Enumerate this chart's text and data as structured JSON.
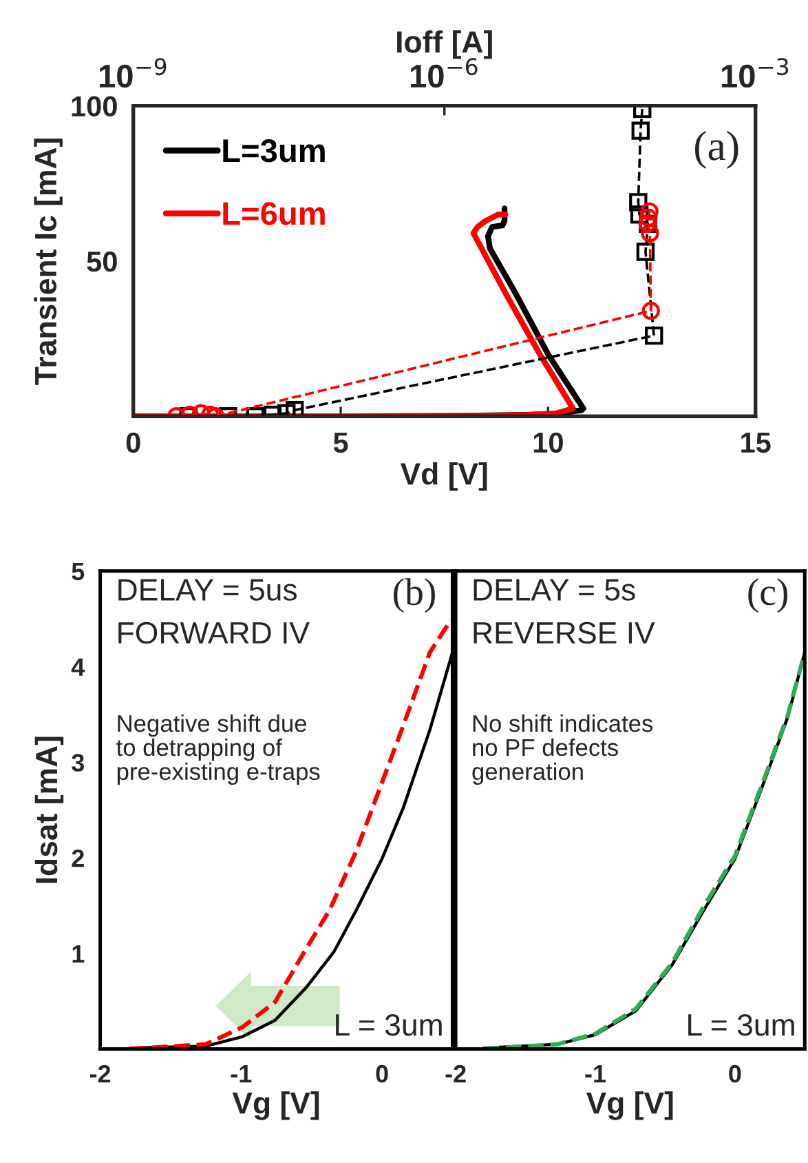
{
  "chart_data": [
    {
      "type": "line",
      "xlabel": "Vd [V]",
      "x2label": "Ioff [A]",
      "ylabel": "Transient Ic [mA]",
      "xlim": [
        0,
        15
      ],
      "xticks": [
        0,
        5,
        10,
        15
      ],
      "ylim": [
        0,
        100
      ],
      "yticks": [
        50,
        100
      ],
      "x2lim": [
        1e-09,
        0.001
      ],
      "x2ticks": [
        {
          "value": 1e-09,
          "label": "10$^{−9}$"
        },
        {
          "value": 1e-06,
          "label": "10$^{−6}$"
        },
        {
          "value": 0.001,
          "label": "10$^{−3}$"
        }
      ],
      "log": "x2",
      "legend": "top left",
      "grid": false,
      "annotations": [
        "(a)"
      ],
      "series": [
        {
          "name": "L=3um",
          "color": "#000000",
          "line_style": "solid",
          "marker": "none",
          "x": [
            0,
            5,
            8,
            9.5,
            10.3,
            10.8,
            10.85,
            10.0,
            9.2,
            8.6,
            8.55,
            8.65,
            8.9,
            8.95,
            8.95
          ],
          "values": [
            0,
            0,
            0.2,
            0.5,
            1,
            2,
            2.5,
            20,
            40,
            54,
            58,
            61,
            61.5,
            63,
            67
          ]
        },
        {
          "name": "L=6um",
          "color": "#ff0000",
          "line_style": "solid",
          "marker": "none",
          "x": [
            0,
            5,
            8,
            9.5,
            10.2,
            10.6,
            9.8,
            9.0,
            8.2,
            8.3,
            8.5,
            8.8,
            8.97
          ],
          "values": [
            0,
            0,
            0.1,
            0.4,
            1,
            2.5,
            20,
            39,
            59,
            61,
            63,
            65,
            65
          ]
        },
        {
          "color": "#000000",
          "axis": "x2",
          "line_style": "dashed",
          "marker": "square",
          "x": [
            3.4e-09,
            8.2e-09,
            1.5e-08,
            2.2e-08,
            3e-08,
            3.6e-08,
            0.000105,
            8.7e-05,
            9.2e-05,
            7.6e-05,
            7.4e-05,
            7.8e-05,
            8.1e-05
          ],
          "values": [
            0,
            0,
            0,
            0.5,
            1,
            2,
            26,
            53,
            62,
            65,
            69,
            92,
            99
          ]
        },
        {
          "color": "#ff0000",
          "axis": "x2",
          "line_style": "dashed",
          "marker": "circle",
          "x": [
            2.6e-09,
            3.5e-09,
            4.5e-09,
            5.5e-09,
            6.2e-09,
            9.8e-05,
            9.6e-05,
            9.1e-05,
            9.3e-05,
            9.5e-05
          ],
          "values": [
            0,
            0.5,
            1,
            0.5,
            0,
            34,
            59,
            62,
            64,
            66
          ]
        }
      ]
    },
    {
      "type": "line",
      "xlabel": "Vg [V]",
      "ylabel": "Idsat [mA]",
      "xlim": [
        -2,
        0.5
      ],
      "xticks": [
        -2,
        -1,
        0
      ],
      "ylim": [
        0,
        5
      ],
      "yticks": [
        1,
        2,
        3,
        4,
        5
      ],
      "grid": false,
      "annotations": [
        "DELAY = 5us",
        "FORWARD IV",
        "(b)",
        "Negative shift due\nto detrapping of\npre-existing e-traps",
        "L = 3um"
      ],
      "series": [
        {
          "color": "#000000",
          "line_style": "solid",
          "marker": "none",
          "x": [
            -1.79,
            -1.25,
            -0.99,
            -0.76,
            -0.54,
            -0.34,
            -0.18,
            0,
            0.15,
            0.34,
            0.5
          ],
          "values": [
            0.01,
            0.03,
            0.13,
            0.3,
            0.64,
            1.02,
            1.46,
            1.99,
            2.52,
            3.34,
            4.15
          ]
        },
        {
          "color": "#ff0000",
          "line_style": "dashed",
          "marker": "none",
          "x": [
            -1.79,
            -1.25,
            -0.99,
            -0.76,
            -0.57,
            -0.37,
            -0.18,
            -0.02,
            0.15,
            0.34,
            0.49
          ],
          "values": [
            0,
            0.05,
            0.23,
            0.49,
            0.97,
            1.46,
            2.08,
            2.71,
            3.38,
            4.15,
            4.49
          ]
        }
      ]
    },
    {
      "type": "line",
      "xlabel": "Vg [V]",
      "xlim": [
        -2,
        0.5
      ],
      "xticks": [
        -2,
        -1,
        0
      ],
      "ylim": [
        0,
        5
      ],
      "yticks": [
        1,
        2,
        3,
        4,
        5
      ],
      "tick_labels": "x",
      "grid": false,
      "annotations": [
        "DELAY = 5s",
        "REVERSE IV",
        "(c)",
        "No shift indicates\nno PF defects\ngeneration",
        "L = 3um"
      ],
      "series": [
        {
          "color": "#000000",
          "line_style": "solid",
          "marker": "none",
          "x": [
            -1.8,
            -1.27,
            -1.0,
            -0.71,
            -0.45,
            -0.22,
            0,
            0.21,
            0.38,
            0.5
          ],
          "values": [
            0.01,
            0.05,
            0.15,
            0.4,
            0.88,
            1.46,
            1.99,
            2.8,
            3.48,
            4.15
          ]
        },
        {
          "color": "#33aa55",
          "line_style": "dashed",
          "marker": "none",
          "x": [
            -1.8,
            -1.27,
            -1.0,
            -0.71,
            -0.45,
            -0.22,
            0,
            0.21,
            0.38,
            0.5
          ],
          "values": [
            0.0,
            0.05,
            0.16,
            0.42,
            0.9,
            1.5,
            2.02,
            2.83,
            3.5,
            4.15
          ]
        }
      ]
    }
  ]
}
